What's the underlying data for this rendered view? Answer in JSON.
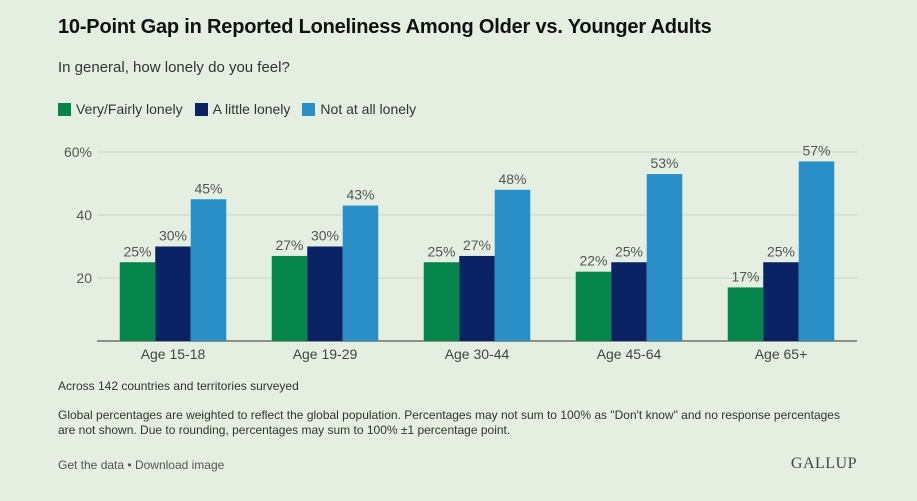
{
  "header": {
    "title": "10-Point Gap in Reported Loneliness Among Older vs. Younger Adults",
    "subtitle": "In general, how lonely do you feel?"
  },
  "legend": [
    {
      "label": "Very/Fairly lonely",
      "color": "#06854a"
    },
    {
      "label": "A little lonely",
      "color": "#0b2264"
    },
    {
      "label": "Not at all lonely",
      "color": "#2a8fc6"
    }
  ],
  "chart_data": {
    "type": "bar",
    "title": "10-Point Gap in Reported Loneliness Among Older vs. Younger Adults",
    "subtitle": "In general, how lonely do you feel?",
    "categories": [
      "Age 15-18",
      "Age 19-29",
      "Age 30-44",
      "Age 45-64",
      "Age 65+"
    ],
    "series": [
      {
        "name": "Very/Fairly lonely",
        "color": "#06854a",
        "values": [
          25,
          27,
          25,
          22,
          17
        ],
        "labels": [
          "25%",
          "27%",
          "25%",
          "22%",
          "17%"
        ]
      },
      {
        "name": "A little lonely",
        "color": "#0b2264",
        "values": [
          30,
          30,
          27,
          25,
          25
        ],
        "labels": [
          "30%",
          "30%",
          "27%",
          "25%",
          "25%"
        ]
      },
      {
        "name": "Not at all lonely",
        "color": "#2a8fc6",
        "values": [
          45,
          43,
          48,
          53,
          57
        ],
        "labels": [
          "45%",
          "43%",
          "48%",
          "53%",
          "57%"
        ]
      }
    ],
    "ylim": [
      0,
      60
    ],
    "yticks": [
      20,
      40,
      60
    ],
    "ytick_labels": [
      "20",
      "40",
      "60%"
    ],
    "grid": true,
    "legend_position": "top-left"
  },
  "notes": {
    "scope": "Across 142 countries and territories surveyed",
    "methodology": "Global percentages are weighted to reflect the global population. Percentages may not sum to 100% as \"Don't know\" and no response percentages are not shown. Due to rounding, percentages may sum to 100% ±1 percentage point."
  },
  "footer": {
    "get_data": "Get the data",
    "separator": "•",
    "download": "Download image",
    "brand": "GALLUP"
  }
}
